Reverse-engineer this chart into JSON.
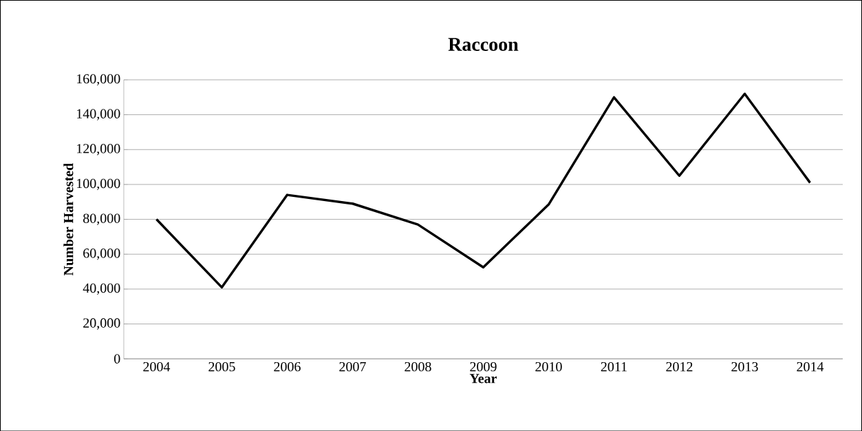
{
  "chart_data": {
    "type": "line",
    "title": "Raccoon",
    "xlabel": "Year",
    "ylabel": "Number Harvested",
    "categories": [
      "2004",
      "2005",
      "2006",
      "2007",
      "2008",
      "2009",
      "2010",
      "2011",
      "2012",
      "2013",
      "2014"
    ],
    "series": [
      {
        "color": "#000000",
        "values": [
          80000,
          41000,
          94000,
          89000,
          77000,
          52500,
          88500,
          150000,
          105000,
          152000,
          101000
        ]
      }
    ],
    "ylim": [
      0,
      160000
    ],
    "yticks": [
      {
        "value": 0,
        "label": "0"
      },
      {
        "value": 20000,
        "label": "20,000"
      },
      {
        "value": 40000,
        "label": "40,000"
      },
      {
        "value": 60000,
        "label": "60,000"
      },
      {
        "value": 80000,
        "label": "80,000"
      },
      {
        "value": 100000,
        "label": "100,000"
      },
      {
        "value": 120000,
        "label": "120,000"
      },
      {
        "value": 140000,
        "label": "140,000"
      },
      {
        "value": 160000,
        "label": "160,000"
      }
    ],
    "grid": "y",
    "legend": false,
    "marker": "none",
    "line_style": "solid"
  }
}
